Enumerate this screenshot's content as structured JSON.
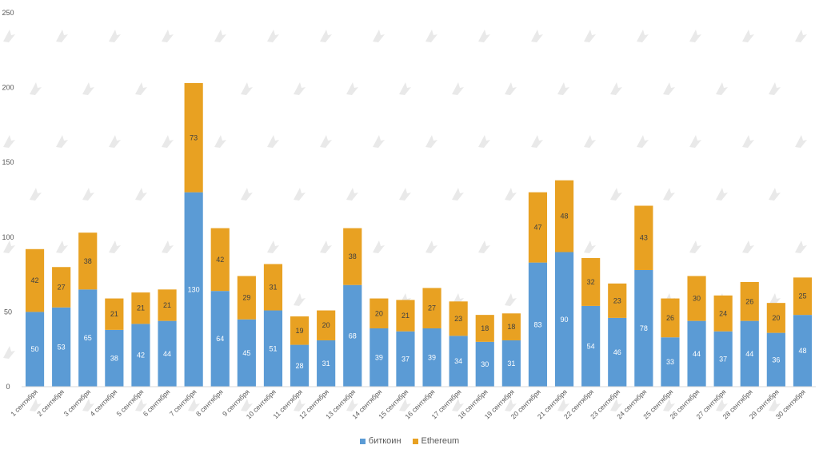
{
  "chart_data": {
    "type": "bar",
    "stacked": true,
    "title": "",
    "xlabel": "",
    "ylabel": "",
    "ylim": [
      0,
      250
    ],
    "yticks": [
      0,
      50,
      100,
      150,
      200,
      250
    ],
    "grid": false,
    "legend_position": "bottom",
    "categories": [
      "1 сентября",
      "2 сентября",
      "3 сентября",
      "4 сентября",
      "5 сентября",
      "6 сентября",
      "7 сентября",
      "8 сентября",
      "9 сентября",
      "10 сентября",
      "11 сентября",
      "12 сентября",
      "13 сентября",
      "14 сентября",
      "15 сентября",
      "16 сентября",
      "17 сентября",
      "18 сентября",
      "19 сентября",
      "20 сентября",
      "21 сентября",
      "22 сентября",
      "23 сентября",
      "24 сентября",
      "25 сентября",
      "26 сентября",
      "27 сентября",
      "28 сентября",
      "29 сентября",
      "30 сентября"
    ],
    "series": [
      {
        "name": "биткоин",
        "color": "#5B9BD5",
        "label_color": "#ffffff",
        "values": [
          50,
          53,
          65,
          38,
          42,
          44,
          130,
          64,
          45,
          51,
          28,
          31,
          68,
          39,
          37,
          39,
          34,
          30,
          31,
          83,
          90,
          54,
          46,
          78,
          33,
          44,
          37,
          44,
          36,
          48
        ]
      },
      {
        "name": "Ethereum",
        "color": "#E8A122",
        "label_color": "#404040",
        "values": [
          42,
          27,
          38,
          21,
          21,
          21,
          73,
          42,
          29,
          31,
          19,
          20,
          38,
          20,
          21,
          27,
          23,
          18,
          18,
          47,
          48,
          32,
          23,
          43,
          26,
          30,
          24,
          26,
          20,
          25
        ]
      }
    ]
  }
}
